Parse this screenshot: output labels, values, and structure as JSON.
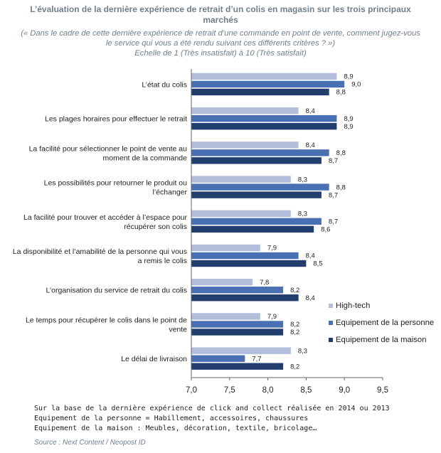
{
  "chart_data": {
    "type": "bar",
    "orientation": "horizontal",
    "title_lines": [
      "L’évaluation de la dernière expérience de retrait d’un colis en magasin sur les trois principaux",
      "marchés"
    ],
    "subtitle_lines": [
      "(« Dans le cadre de cette dernière expérience de retrait d’une commande en point de vente, comment jugez-vous",
      "le service qui vous a été rendu suivant ces différents critères ? »)",
      "Echelle de 1 (Très insatisfait) à 10 (Très satisfait)"
    ],
    "categories": [
      [
        "L’état du colis"
      ],
      [
        "Les plages horaires pour effectuer le retrait"
      ],
      [
        "La facilité pour sélectionner le point de vente au",
        "moment de la commande"
      ],
      [
        "Les possibilités pour retourner le produit ou",
        "l’échanger"
      ],
      [
        "La facilité pour trouver et accéder à l’espace pour",
        "récupérer son colis"
      ],
      [
        "La disponibilité et l’amabilité de la personne qui vous",
        "a remis le colis"
      ],
      [
        "L’organisation du service de retrait du colis"
      ],
      [
        "Le temps pour récupérer le colis dans le point de",
        "vente"
      ],
      [
        "Le délai de livraison"
      ]
    ],
    "series": [
      {
        "name": "High-tech",
        "color": "#b3bedc",
        "values": [
          8.9,
          8.4,
          8.4,
          8.3,
          8.3,
          7.9,
          7.8,
          7.9,
          8.3
        ],
        "labels": [
          "8,9",
          "8,4",
          "8,4",
          "8,3",
          "8,3",
          "7,9",
          "7,8",
          "7,9",
          "8,3"
        ]
      },
      {
        "name": "Equipement de la personne",
        "color": "#4a70b4",
        "values": [
          9.0,
          8.9,
          8.8,
          8.8,
          8.7,
          8.4,
          8.2,
          8.2,
          7.7
        ],
        "labels": [
          "9,0",
          "8,9",
          "8,8",
          "8,8",
          "8,7",
          "8,4",
          "8,2",
          "8,2",
          "7,7"
        ]
      },
      {
        "name": "Equipement de la maison",
        "color": "#213e6e",
        "values": [
          8.8,
          8.9,
          8.7,
          8.7,
          8.6,
          8.5,
          8.4,
          8.2,
          8.2
        ],
        "labels": [
          "8,8",
          "8,9",
          "8,7",
          "8,7",
          "8,6",
          "8,5",
          "8,4",
          "8,2",
          "8,2"
        ]
      }
    ],
    "xlim": [
      7.0,
      9.5
    ],
    "xticks": [
      7.0,
      7.5,
      8.0,
      8.5,
      9.0,
      9.5
    ],
    "xtick_labels": [
      "7,0",
      "7,5",
      "8,0",
      "8,5",
      "9,0",
      "9,5"
    ],
    "legend_position": "right",
    "grid": false
  },
  "notes": [
    "Sur la base de la dernière expérience de click and collect réalisée en 2014 ou 2013",
    "Equipement de la personne = Habillement, accessoires, chaussures",
    "Equipement de la maison : Meubles, décoration, textile, bricolage…"
  ],
  "source": "Source : Next Content / Neopost ID"
}
